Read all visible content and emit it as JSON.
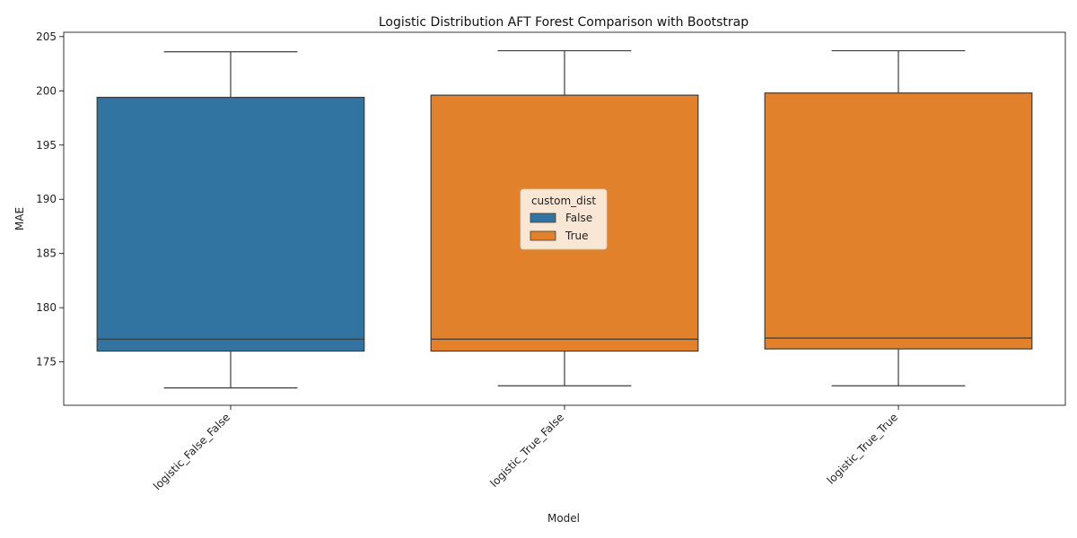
{
  "chart_data": {
    "type": "box",
    "title": "Logistic Distribution AFT Forest Comparison with Bootstrap",
    "xlabel": "Model",
    "ylabel": "MAE",
    "ylim": [
      171,
      205.4
    ],
    "yticks": [
      175,
      180,
      185,
      190,
      195,
      200,
      205
    ],
    "categories": [
      "logistic_False_False",
      "logistic_True_False",
      "logistic_True_True"
    ],
    "hue_name": "custom_dist",
    "legend_placement": "center",
    "grid": false,
    "hue_levels": [
      {
        "label": "False",
        "color": "#3274a1"
      },
      {
        "label": "True",
        "color": "#e1812c"
      }
    ],
    "boxes": [
      {
        "category": "logistic_False_False",
        "hue": "False",
        "whisker_low": 172.6,
        "q1": 176.0,
        "median": 177.1,
        "q3": 199.4,
        "whisker_high": 203.6
      },
      {
        "category": "logistic_True_False",
        "hue": "True",
        "whisker_low": 172.8,
        "q1": 176.0,
        "median": 177.1,
        "q3": 199.6,
        "whisker_high": 203.7
      },
      {
        "category": "logistic_True_True",
        "hue": "True",
        "whisker_low": 172.8,
        "q1": 176.2,
        "median": 177.2,
        "q3": 199.8,
        "whisker_high": 203.7
      }
    ]
  }
}
